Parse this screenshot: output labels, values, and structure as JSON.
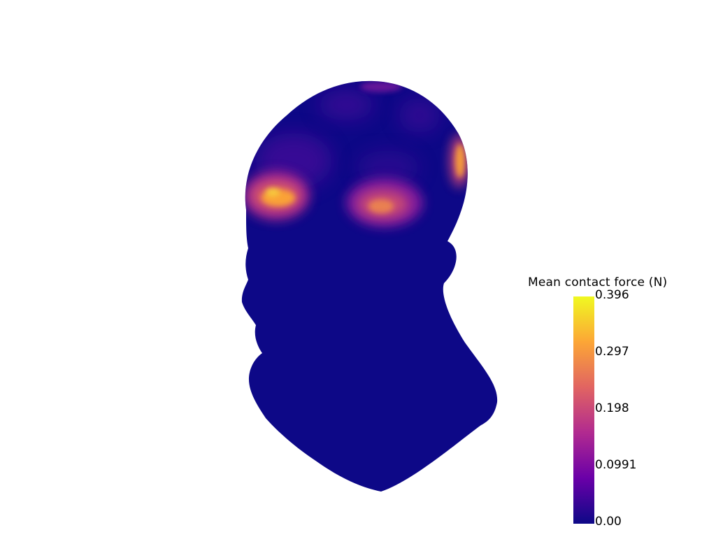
{
  "scene": {
    "object": "head-mesh",
    "base_color": "#0d0887",
    "background_color": "#ffffff"
  },
  "scalar_bar": {
    "title": "Mean contact force (N)",
    "ticks": [
      "0.396",
      "0.297",
      "0.198",
      "0.0991",
      "0.00"
    ],
    "colormap": "plasma",
    "colormap_stops": [
      "#0d0887",
      "#6a00a8",
      "#b12a90",
      "#e16462",
      "#fca636",
      "#f0f921"
    ],
    "range": [
      0.0,
      0.396
    ]
  }
}
